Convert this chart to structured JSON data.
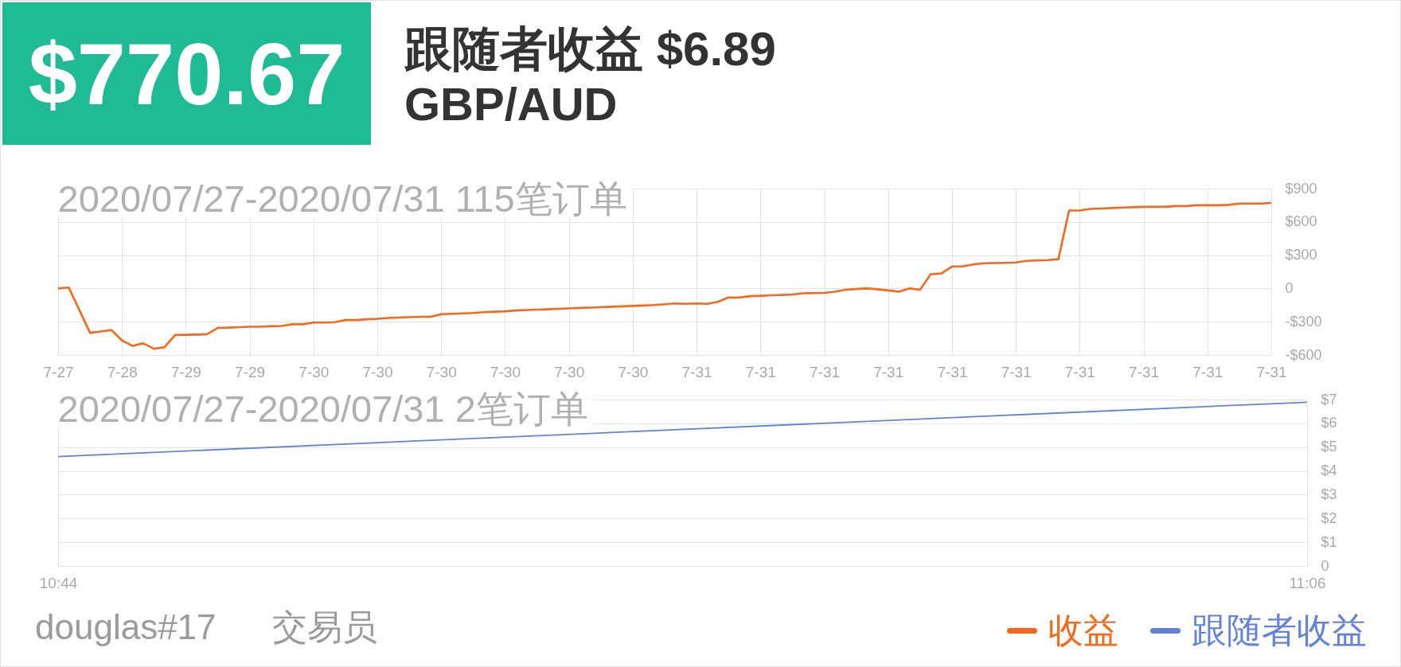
{
  "chart_data": [
    {
      "type": "line",
      "subtitle": "2020/07/27-2020/07/31 115笔订单",
      "annotations": [
        "$770.67",
        "跟随者收益 $6.89",
        "GBP/AUD",
        "douglas#17",
        "交易员"
      ],
      "categories": [
        "7-27",
        null,
        null,
        null,
        null,
        null,
        "7-28",
        null,
        null,
        null,
        null,
        null,
        "7-29",
        null,
        null,
        null,
        null,
        null,
        "7-29",
        null,
        null,
        null,
        null,
        null,
        "7-30",
        null,
        null,
        null,
        null,
        null,
        "7-30",
        null,
        null,
        null,
        null,
        null,
        "7-30",
        null,
        null,
        null,
        null,
        null,
        "7-30",
        null,
        null,
        null,
        null,
        null,
        "7-30",
        null,
        null,
        null,
        null,
        null,
        "7-30",
        null,
        null,
        null,
        null,
        null,
        "7-31",
        null,
        null,
        null,
        null,
        null,
        "7-31",
        null,
        null,
        null,
        null,
        null,
        "7-31",
        null,
        null,
        null,
        null,
        null,
        "7-31",
        null,
        null,
        null,
        null,
        null,
        "7-31",
        null,
        null,
        null,
        null,
        null,
        "7-31",
        null,
        null,
        null,
        null,
        null,
        "7-31",
        null,
        null,
        null,
        null,
        null,
        "7-31",
        null,
        null,
        null,
        null,
        null,
        "7-31",
        null,
        null,
        null,
        null,
        null,
        "7-31"
      ],
      "series": [
        {
          "name": "收益",
          "color": "#f7681a",
          "values": [
            0,
            8,
            -195,
            -400,
            -388,
            -375,
            -469,
            -518,
            -495,
            -544,
            -529,
            -420,
            -418,
            -416,
            -413,
            -356,
            -353,
            -349,
            -345,
            -345,
            -341,
            -338,
            -323,
            -323,
            -308,
            -308,
            -304,
            -285,
            -285,
            -278,
            -274,
            -266,
            -263,
            -259,
            -255,
            -255,
            -233,
            -229,
            -225,
            -221,
            -214,
            -210,
            -206,
            -199,
            -195,
            -191,
            -188,
            -184,
            -180,
            -176,
            -173,
            -169,
            -165,
            -161,
            -158,
            -154,
            -150,
            -143,
            -135,
            -139,
            -135,
            -139,
            -121,
            -81,
            -81,
            -70,
            -66,
            -62,
            -59,
            -55,
            -44,
            -42,
            -40,
            -29,
            -11,
            -5,
            0,
            -7,
            -18,
            -29,
            0,
            -11,
            128,
            135,
            198,
            198,
            216,
            227,
            229,
            231,
            234,
            249,
            253,
            256,
            264,
            703,
            703,
            717,
            721,
            725,
            729,
            732,
            736,
            736,
            736,
            743,
            743,
            750,
            750,
            750,
            754,
            765,
            765,
            765,
            771
          ]
        }
      ],
      "ylim": [
        -600,
        900
      ],
      "yticks": [
        {
          "value": 900,
          "label": "$900"
        },
        {
          "value": 600,
          "label": "$600"
        },
        {
          "value": 300,
          "label": "$300"
        },
        0,
        {
          "value": -300,
          "label": "-$300"
        },
        {
          "value": -600,
          "label": "-$600"
        }
      ],
      "grid": true,
      "legend": "bottom right"
    },
    {
      "type": "line",
      "subtitle": "2020/07/27-2020/07/31 2笔订单",
      "x": [
        10.7333,
        11.1
      ],
      "series": [
        {
          "name": "跟随者收益",
          "color": "#6483d8",
          "values": [
            4.6,
            6.89
          ]
        }
      ],
      "xlim": [
        10.7333,
        11.1
      ],
      "xticks": [
        {
          "value": 10.7333,
          "label": "10:44"
        },
        {
          "value": 11.1,
          "label": "11:06"
        }
      ],
      "ylim": [
        0,
        7
      ],
      "yticks": [
        0,
        {
          "value": 1,
          "label": "$1"
        },
        {
          "value": 2,
          "label": "$2"
        },
        {
          "value": 3,
          "label": "$3"
        },
        {
          "value": 4,
          "label": "$4"
        },
        {
          "value": 5,
          "label": "$5"
        },
        {
          "value": 6,
          "label": "$6"
        },
        {
          "value": 7,
          "label": "$7"
        }
      ],
      "grid": true,
      "legend": "bottom right"
    }
  ]
}
